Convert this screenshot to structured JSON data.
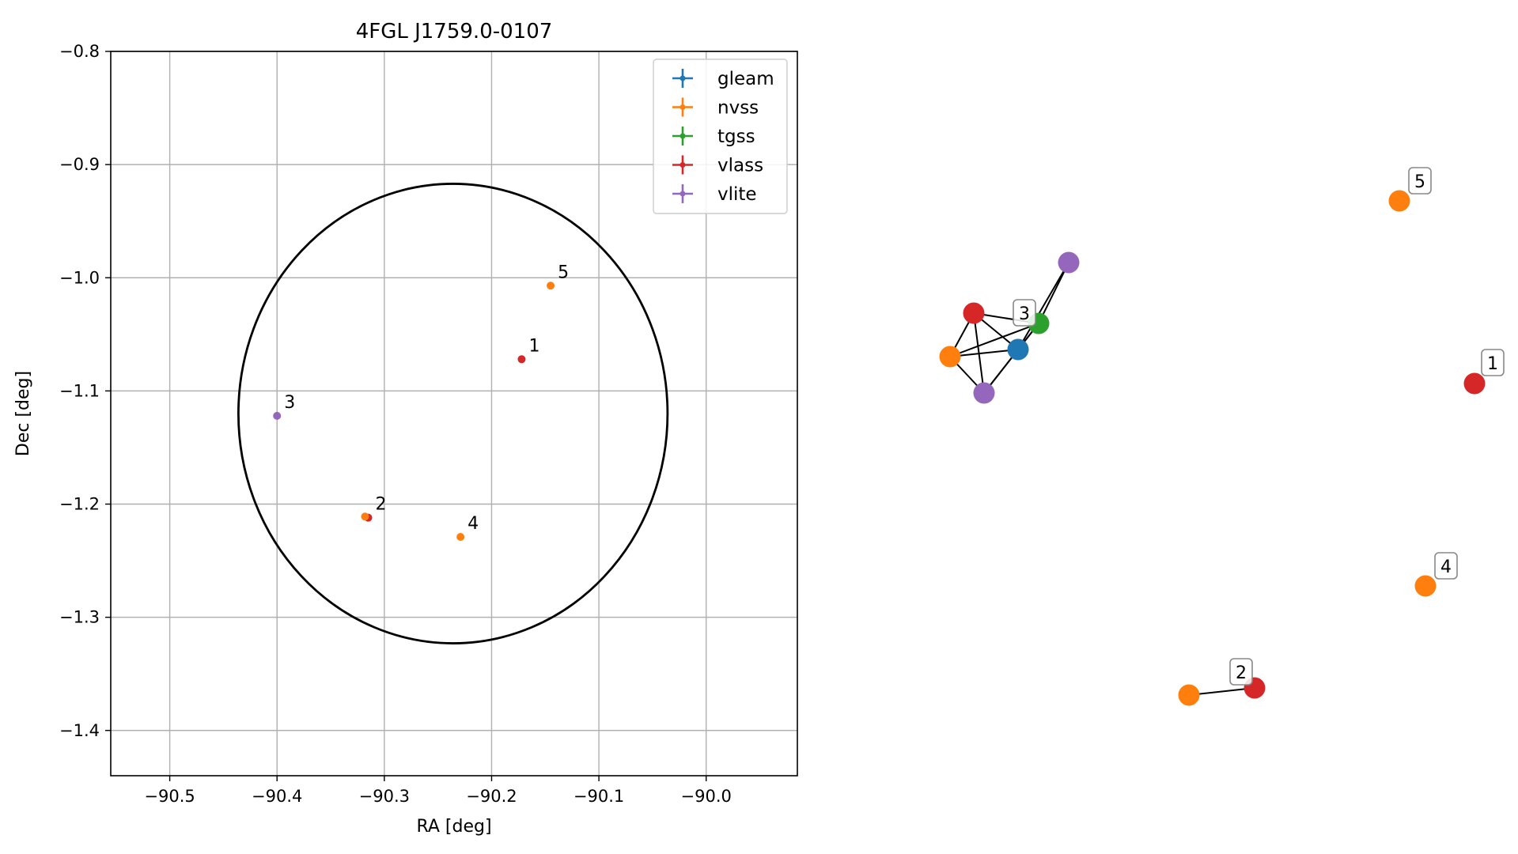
{
  "chart_data": [
    {
      "type": "scatter",
      "title": "4FGL J1759.0-0107",
      "xlabel": "RA [deg]",
      "ylabel": "Dec [deg]",
      "xlim": [
        -90.555,
        -89.915
      ],
      "ylim": [
        -1.44,
        -0.8
      ],
      "x_reversed": false,
      "grid": true,
      "legend_placement": "upper right",
      "xticks": [
        -90.5,
        -90.4,
        -90.3,
        -90.2,
        -90.1,
        -90.0
      ],
      "xtick_labels": [
        "−90.5",
        "−90.4",
        "−90.3",
        "−90.2",
        "−90.1",
        "−90.0"
      ],
      "yticks": [
        -0.8,
        -0.9,
        -1.0,
        -1.1,
        -1.2,
        -1.3,
        -1.4
      ],
      "ytick_labels": [
        "−0.8",
        "−0.9",
        "−1.0",
        "−1.1",
        "−1.2",
        "−1.3",
        "−1.4"
      ],
      "legend": [
        {
          "name": "gleam",
          "color": "#1f77b4"
        },
        {
          "name": "nvss",
          "color": "#ff7f0e"
        },
        {
          "name": "tgss",
          "color": "#2ca02c"
        },
        {
          "name": "vlass",
          "color": "#d62728"
        },
        {
          "name": "vlite",
          "color": "#9467bd"
        }
      ],
      "ellipse": {
        "center": [
          -90.236,
          -1.12
        ],
        "semi_axis_x": 0.2,
        "semi_axis_y": 0.203,
        "color": "#000000"
      },
      "points": [
        {
          "label": "1",
          "x": -90.172,
          "y": -1.072,
          "survey": "vlass",
          "color": "#d62728"
        },
        {
          "label": "2",
          "x": -90.315,
          "y": -1.212,
          "survey": "vlass",
          "color": "#d62728"
        },
        {
          "label": "",
          "x": -90.318,
          "y": -1.211,
          "survey": "nvss",
          "color": "#ff7f0e"
        },
        {
          "label": "3",
          "x": -90.4,
          "y": -1.122,
          "survey": "vlite",
          "color": "#9467bd"
        },
        {
          "label": "4",
          "x": -90.229,
          "y": -1.229,
          "survey": "nvss",
          "color": "#ff7f0e"
        },
        {
          "label": "5",
          "x": -90.145,
          "y": -1.007,
          "survey": "nvss",
          "color": "#ff7f0e"
        }
      ]
    },
    {
      "type": "network",
      "nodes": [
        {
          "id": "c3_vlite_top",
          "color": "#9467bd",
          "label": ""
        },
        {
          "id": "c3_vlass",
          "color": "#d62728",
          "label": ""
        },
        {
          "id": "c3_tgss",
          "color": "#2ca02c",
          "label": "3"
        },
        {
          "id": "c3_gleam",
          "color": "#1f77b4",
          "label": ""
        },
        {
          "id": "c3_nvss",
          "color": "#ff7f0e",
          "label": ""
        },
        {
          "id": "c3_vlite_bottom",
          "color": "#9467bd",
          "label": ""
        },
        {
          "id": "n5",
          "color": "#ff7f0e",
          "label": "5"
        },
        {
          "id": "n1",
          "color": "#d62728",
          "label": "1"
        },
        {
          "id": "n4",
          "color": "#ff7f0e",
          "label": "4"
        },
        {
          "id": "n2_nvss",
          "color": "#ff7f0e",
          "label": ""
        },
        {
          "id": "n2_vlass",
          "color": "#d62728",
          "label": "2"
        }
      ],
      "edges": [
        [
          "c3_vlass",
          "c3_tgss"
        ],
        [
          "c3_vlass",
          "c3_gleam"
        ],
        [
          "c3_vlass",
          "c3_nvss"
        ],
        [
          "c3_vlass",
          "c3_vlite_bottom"
        ],
        [
          "c3_nvss",
          "c3_tgss"
        ],
        [
          "c3_nvss",
          "c3_gleam"
        ],
        [
          "c3_nvss",
          "c3_vlite_bottom"
        ],
        [
          "c3_vlite_bottom",
          "c3_gleam"
        ],
        [
          "c3_vlite_bottom",
          "c3_tgss"
        ],
        [
          "c3_gleam",
          "c3_tgss"
        ],
        [
          "c3_gleam",
          "c3_vlite_top"
        ],
        [
          "c3_tgss",
          "c3_vlite_top"
        ],
        [
          "n2_nvss",
          "n2_vlass"
        ]
      ]
    }
  ]
}
